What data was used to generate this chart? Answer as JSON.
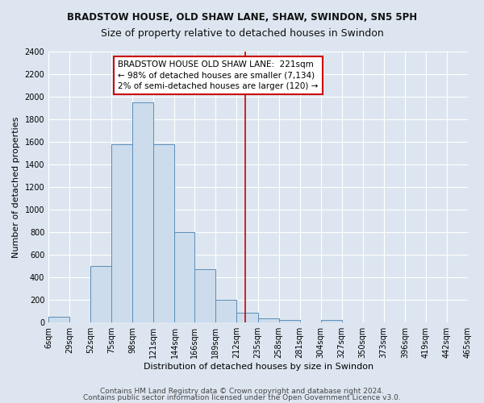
{
  "title": "BRADSTOW HOUSE, OLD SHAW LANE, SHAW, SWINDON, SN5 5PH",
  "subtitle": "Size of property relative to detached houses in Swindon",
  "xlabel": "Distribution of detached houses by size in Swindon",
  "ylabel": "Number of detached properties",
  "footer1": "Contains HM Land Registry data © Crown copyright and database right 2024.",
  "footer2": "Contains public sector information licensed under the Open Government Licence v3.0.",
  "bin_edges": [
    6,
    29,
    52,
    75,
    98,
    121,
    144,
    166,
    189,
    212,
    235,
    258,
    281,
    304,
    327,
    350,
    373,
    396,
    419,
    442,
    465
  ],
  "bar_heights": [
    50,
    0,
    500,
    1580,
    1950,
    1580,
    800,
    470,
    200,
    90,
    35,
    20,
    5,
    20,
    5,
    0,
    0,
    0,
    0,
    0
  ],
  "bar_color": "#ccdcec",
  "bar_edge_color": "#5b8db8",
  "red_line_x": 221,
  "annotation_line1": "BRADSTOW HOUSE OLD SHAW LANE:  221sqm",
  "annotation_line2": "← 98% of detached houses are smaller (7,134)",
  "annotation_line3": "2% of semi-detached houses are larger (120) →",
  "annotation_box_color": "#ffffff",
  "annotation_box_edge": "#cc0000",
  "ylim": [
    0,
    2400
  ],
  "yticks": [
    0,
    200,
    400,
    600,
    800,
    1000,
    1200,
    1400,
    1600,
    1800,
    2000,
    2200,
    2400
  ],
  "xtick_labels": [
    "6sqm",
    "29sqm",
    "52sqm",
    "75sqm",
    "98sqm",
    "121sqm",
    "144sqm",
    "166sqm",
    "189sqm",
    "212sqm",
    "235sqm",
    "258sqm",
    "281sqm",
    "304sqm",
    "327sqm",
    "350sqm",
    "373sqm",
    "396sqm",
    "419sqm",
    "442sqm",
    "465sqm"
  ],
  "bg_color": "#dde6f0",
  "grid_color": "#ffffff",
  "title_fontsize": 8.5,
  "subtitle_fontsize": 9,
  "axis_label_fontsize": 8,
  "tick_fontsize": 7,
  "annotation_fontsize": 7.5,
  "footer_fontsize": 6.5
}
